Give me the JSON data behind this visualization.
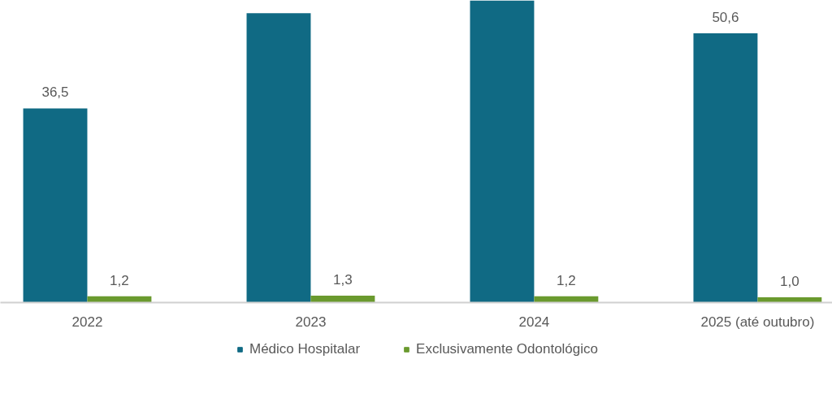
{
  "chart_data": {
    "type": "bar",
    "categories": [
      "2022",
      "2023",
      "2024",
      "2025 (até outubro)"
    ],
    "ylim": [
      0,
      56.8
    ],
    "legend": "bottom",
    "series": [
      {
        "name": "Médico Hospitalar",
        "color": "#106a84",
        "values": [
          36.5,
          54.4,
          56.8,
          50.6
        ],
        "value_labels": [
          "36,5",
          null,
          null,
          "50,6"
        ]
      },
      {
        "name": "Exclusivamente Odontológico",
        "color": "#6a9a2e",
        "values": [
          1.2,
          1.3,
          1.2,
          1.0
        ],
        "value_labels": [
          "1,2",
          "1,3",
          "1,2",
          "1,0"
        ]
      }
    ]
  }
}
